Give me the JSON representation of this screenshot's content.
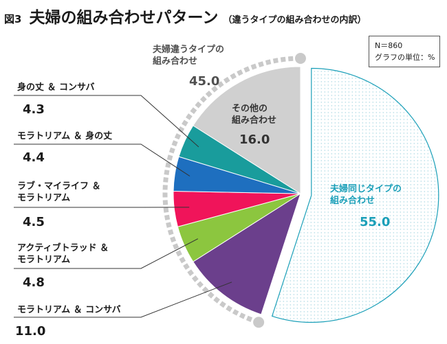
{
  "header": {
    "fig_label": "図3",
    "title": "夫婦の組み合わせパターン",
    "subtitle": "（違うタイプの組み合わせの内訳）"
  },
  "note": {
    "n": "N＝860",
    "unit": "グラフの単位：%"
  },
  "chart_data": {
    "type": "pie",
    "unit": "%",
    "slices": [
      {
        "label_lines": [
          "夫婦同じタイプの",
          "組み合わせ"
        ],
        "value": 55.0,
        "display": "55.0",
        "color": "#1a9fb8",
        "style": "dotted"
      },
      {
        "label_lines": [
          "モラトリアム ＆ コンサバ"
        ],
        "value": 11.0,
        "display": "11.0",
        "color": "#6b3f8c"
      },
      {
        "label_lines": [
          "アクティブトラッド ＆",
          "モラトリアム"
        ],
        "value": 4.8,
        "display": "4.8",
        "color": "#8cc63f"
      },
      {
        "label_lines": [
          "ラブ・マイライフ ＆",
          "モラトリアム"
        ],
        "value": 4.5,
        "display": "4.5",
        "color": "#f0145a"
      },
      {
        "label_lines": [
          "モラトリアム ＆ 身の丈"
        ],
        "value": 4.4,
        "display": "4.4",
        "color": "#1e6fbf"
      },
      {
        "label_lines": [
          "身の丈 ＆ コンサバ"
        ],
        "value": 4.3,
        "display": "4.3",
        "color": "#199c9c"
      },
      {
        "label_lines": [
          "その他の",
          "組み合わせ"
        ],
        "value": 16.0,
        "display": "16.0",
        "color": "#d0d0d0"
      }
    ],
    "group": {
      "label_lines": [
        "夫婦違うタイプの",
        "組み合わせ"
      ],
      "value": 45.0,
      "display": "45.0"
    }
  }
}
